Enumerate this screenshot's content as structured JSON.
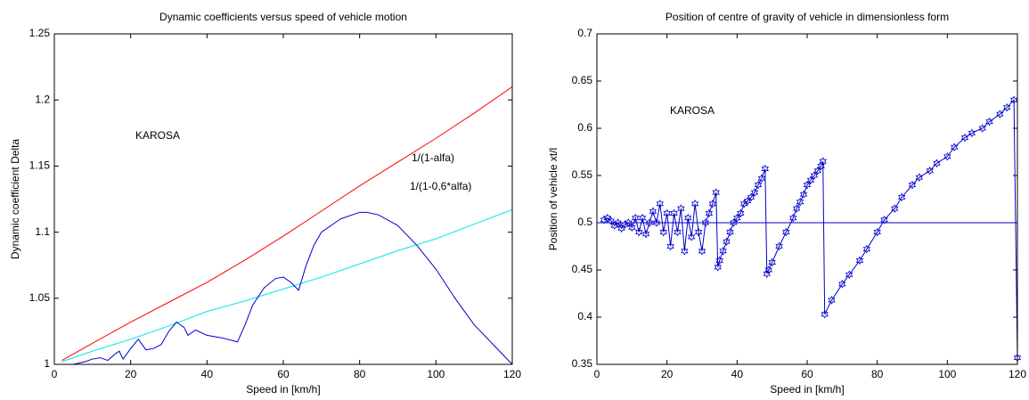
{
  "chart_data": [
    {
      "type": "line",
      "title": "Dynamic coefficients versus speed of vehicle motion",
      "x_label": "Speed in   [km/h]",
      "y_label": "Dynamic coefficient Delta",
      "annotations": [
        "KAROSA",
        "1/(1-alfa)",
        "1/(1-0,6*alfa)"
      ],
      "xlim": [
        0,
        120
      ],
      "xticks": [
        0,
        20,
        40,
        60,
        80,
        100,
        120
      ],
      "ylim": [
        1,
        1.25
      ],
      "yticks": [
        1,
        1.05,
        1.1,
        1.15,
        1.2,
        1.25
      ],
      "grid": false,
      "series": [
        {
          "color": "#ff0000",
          "x": [
            2,
            10,
            20,
            30,
            40,
            50,
            60,
            70,
            80,
            90,
            100,
            110,
            120
          ],
          "values": [
            1.003,
            1.016,
            1.032,
            1.047,
            1.062,
            1.079,
            1.097,
            1.116,
            1.135,
            1.153,
            1.171,
            1.19,
            1.21
          ]
        },
        {
          "color": "#00e5ee",
          "x": [
            2,
            10,
            20,
            30,
            40,
            50,
            60,
            70,
            80,
            90,
            100,
            110,
            120
          ],
          "values": [
            1.002,
            1.01,
            1.019,
            1.029,
            1.04,
            1.048,
            1.057,
            1.066,
            1.076,
            1.086,
            1.095,
            1.106,
            1.117
          ]
        },
        {
          "color": "#0000cc",
          "x": [
            2,
            5,
            8,
            10,
            12,
            14,
            16,
            17,
            18,
            20,
            22,
            24,
            26,
            28,
            30,
            32,
            34,
            35,
            37,
            40,
            44,
            48,
            50,
            52,
            55,
            58,
            60,
            62,
            64,
            66,
            68,
            70,
            75,
            80,
            82,
            85,
            90,
            95,
            100,
            105,
            110,
            115,
            120
          ],
          "values": [
            1.0,
            1.0,
            1.002,
            1.004,
            1.005,
            1.003,
            1.008,
            1.01,
            1.004,
            1.012,
            1.019,
            1.011,
            1.012,
            1.015,
            1.025,
            1.032,
            1.028,
            1.022,
            1.026,
            1.022,
            1.02,
            1.017,
            1.03,
            1.045,
            1.058,
            1.065,
            1.066,
            1.062,
            1.056,
            1.075,
            1.09,
            1.1,
            1.11,
            1.115,
            1.115,
            1.113,
            1.105,
            1.09,
            1.072,
            1.05,
            1.03,
            1.015,
            1.0
          ]
        }
      ]
    },
    {
      "type": "line",
      "title": "Position of centre of gravity of vehicle in dimensionless form",
      "x_label": "Speed in   [km/h]",
      "y_label": "Position of vehicle xt/l",
      "annotations": [
        "KAROSA"
      ],
      "xlim": [
        0,
        120
      ],
      "xticks": [
        0,
        20,
        40,
        60,
        80,
        100,
        120
      ],
      "ylim": [
        0.35,
        0.7
      ],
      "yticks": [
        0.35,
        0.4,
        0.45,
        0.5,
        0.55,
        0.6,
        0.65,
        0.7
      ],
      "grid": false,
      "series": [
        {
          "color": "#0000cc",
          "marker": "star",
          "x": [
            2,
            3,
            4,
            5,
            6,
            7,
            8,
            9,
            10,
            11,
            12,
            13,
            14,
            15,
            16,
            17,
            18,
            19,
            20,
            21,
            22,
            23,
            24,
            25,
            26,
            27,
            28,
            29,
            30,
            31,
            32,
            33,
            34,
            34.5,
            35,
            36,
            37,
            38,
            39,
            40,
            41,
            42,
            43,
            44,
            45,
            46,
            47,
            48,
            48.5,
            49,
            50,
            52,
            54,
            56,
            57,
            58,
            59,
            60,
            61,
            62,
            63,
            64,
            64.5,
            65,
            67,
            70,
            72,
            75,
            77,
            80,
            82,
            85,
            87,
            90,
            92,
            95,
            97,
            100,
            102,
            105,
            107,
            110,
            112,
            115,
            117,
            119,
            120
          ],
          "values": [
            0.503,
            0.505,
            0.502,
            0.497,
            0.5,
            0.494,
            0.498,
            0.5,
            0.495,
            0.505,
            0.49,
            0.505,
            0.488,
            0.5,
            0.512,
            0.5,
            0.52,
            0.49,
            0.51,
            0.475,
            0.51,
            0.49,
            0.515,
            0.47,
            0.505,
            0.485,
            0.52,
            0.49,
            0.47,
            0.5,
            0.51,
            0.52,
            0.532,
            0.453,
            0.46,
            0.47,
            0.48,
            0.49,
            0.5,
            0.505,
            0.51,
            0.52,
            0.523,
            0.527,
            0.532,
            0.54,
            0.547,
            0.557,
            0.446,
            0.45,
            0.458,
            0.475,
            0.49,
            0.505,
            0.515,
            0.522,
            0.53,
            0.54,
            0.545,
            0.55,
            0.555,
            0.56,
            0.565,
            0.403,
            0.418,
            0.435,
            0.445,
            0.46,
            0.472,
            0.49,
            0.503,
            0.515,
            0.527,
            0.54,
            0.548,
            0.555,
            0.563,
            0.57,
            0.58,
            0.59,
            0.595,
            0.6,
            0.607,
            0.615,
            0.622,
            0.63,
            0.357
          ]
        },
        {
          "color": "#0000cc",
          "x": [
            0,
            120
          ],
          "values": [
            0.5,
            0.5
          ]
        }
      ]
    }
  ]
}
